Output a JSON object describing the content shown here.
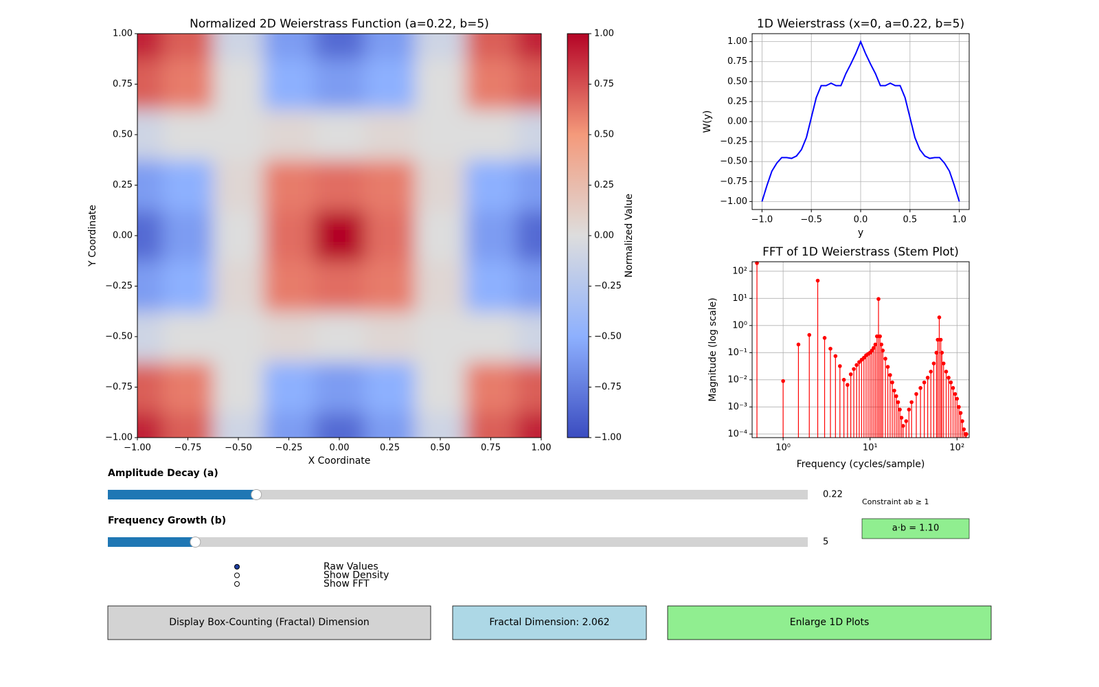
{
  "chart_data": [
    {
      "type": "heatmap",
      "title": "Normalized 2D Weierstrass Function (a=0.22, b=5)",
      "xlabel": "X Coordinate",
      "ylabel": "Y Coordinate",
      "x": [
        -1,
        -0.75,
        -0.5,
        -0.25,
        0,
        0.25,
        0.5,
        0.75,
        1
      ],
      "y": [
        -1,
        -0.75,
        -0.5,
        -0.25,
        0,
        0.25,
        0.5,
        0.75,
        1
      ],
      "values": [
        [
          0.9,
          0.7,
          -0.1,
          -0.6,
          -0.85,
          -0.6,
          -0.1,
          0.7,
          0.9
        ],
        [
          0.7,
          0.6,
          0.0,
          -0.5,
          -0.6,
          -0.5,
          0.0,
          0.6,
          0.7
        ],
        [
          -0.1,
          0.0,
          0.0,
          0.05,
          0.0,
          0.05,
          0.0,
          0.0,
          -0.1
        ],
        [
          -0.6,
          -0.5,
          0.05,
          0.6,
          0.65,
          0.6,
          0.05,
          -0.5,
          -0.6
        ],
        [
          -0.85,
          -0.6,
          0.0,
          0.65,
          1,
          0.65,
          0.0,
          -0.6,
          -0.85
        ],
        [
          -0.6,
          -0.5,
          0.05,
          0.6,
          0.65,
          0.6,
          0.05,
          -0.5,
          -0.6
        ],
        [
          -0.1,
          0.0,
          0.0,
          0.05,
          0.0,
          0.05,
          0.0,
          0.0,
          -0.1
        ],
        [
          0.7,
          0.6,
          0.0,
          -0.5,
          -0.6,
          -0.5,
          0.0,
          0.6,
          0.7
        ],
        [
          0.9,
          0.7,
          -0.1,
          -0.6,
          -0.85,
          -0.6,
          -0.1,
          0.7,
          0.9
        ]
      ],
      "xlim": [
        -1,
        1
      ],
      "ylim": [
        -1,
        1
      ],
      "xticks": [
        {
          "value": -1,
          "label": "−1.00"
        },
        {
          "value": -0.75,
          "label": "−0.75"
        },
        {
          "value": -0.5,
          "label": "−0.50"
        },
        {
          "value": -0.25,
          "label": "−0.25"
        },
        {
          "value": 0,
          "label": "0.00"
        },
        0.25,
        {
          "value": 0.5,
          "label": "0.50"
        },
        0.75,
        {
          "value": 1,
          "label": "1.00"
        }
      ],
      "yticks": [
        {
          "value": -1,
          "label": "−1.00"
        },
        {
          "value": -0.75,
          "label": "−0.75"
        },
        {
          "value": -0.5,
          "label": "−0.50"
        },
        {
          "value": -0.25,
          "label": "−0.25"
        },
        {
          "value": 0,
          "label": "0.00"
        },
        0.25,
        {
          "value": 0.5,
          "label": "0.50"
        },
        0.75,
        {
          "value": 1,
          "label": "1.00"
        }
      ],
      "colormap": "coolwarm",
      "colorbar": {
        "label": "Normalized Value",
        "clim": [
          -1,
          1
        ],
        "ticks": [
          {
            "value": -1,
            "label": "−1.00"
          },
          {
            "value": -0.75,
            "label": "−0.75"
          },
          {
            "value": -0.5,
            "label": "−0.50"
          },
          {
            "value": -0.25,
            "label": "−0.25"
          },
          {
            "value": 0,
            "label": "0.00"
          },
          0.25,
          {
            "value": 0.5,
            "label": "0.50"
          },
          0.75,
          {
            "value": 1,
            "label": "1.00"
          }
        ]
      }
    },
    {
      "type": "line",
      "title": "1D Weierstrass (x=0, a=0.22, b=5)",
      "xlabel": "y",
      "ylabel": "W(y)",
      "color": "#0000ff",
      "grid": true,
      "x": [
        -1,
        -0.95,
        -0.9,
        -0.85,
        -0.8,
        -0.75,
        -0.7,
        -0.65,
        -0.6,
        -0.55,
        -0.5,
        -0.45,
        -0.4,
        -0.35,
        -0.3,
        -0.25,
        -0.2,
        -0.15,
        -0.1,
        -0.05,
        0,
        0.05,
        0.1,
        0.15,
        0.2,
        0.25,
        0.3,
        0.35,
        0.4,
        0.45,
        0.5,
        0.55,
        0.6,
        0.65,
        0.7,
        0.75,
        0.8,
        0.85,
        0.9,
        0.95,
        1
      ],
      "values": [
        -1.0,
        -0.8,
        -0.62,
        -0.52,
        -0.45,
        -0.45,
        -0.46,
        -0.43,
        -0.35,
        -0.2,
        0.05,
        0.3,
        0.45,
        0.45,
        0.48,
        0.45,
        0.45,
        0.6,
        0.72,
        0.85,
        1.0,
        0.85,
        0.72,
        0.6,
        0.45,
        0.45,
        0.48,
        0.45,
        0.45,
        0.3,
        0.05,
        -0.2,
        -0.35,
        -0.43,
        -0.46,
        -0.45,
        -0.45,
        -0.52,
        -0.62,
        -0.8,
        -1.0
      ],
      "xlim": [
        -1.1,
        1.1
      ],
      "ylim": [
        -1.1,
        1.1
      ],
      "xticks": [
        {
          "value": -1,
          "label": "−1.0"
        },
        {
          "value": -0.5,
          "label": "−0.5"
        },
        {
          "value": 0,
          "label": "0.0"
        },
        0.5,
        {
          "value": 1,
          "label": "1.0"
        }
      ],
      "yticks": [
        {
          "value": -1,
          "label": "−1.00"
        },
        {
          "value": -0.75,
          "label": "−0.75"
        },
        {
          "value": -0.5,
          "label": "−0.50"
        },
        {
          "value": -0.25,
          "label": "−0.25"
        },
        {
          "value": 0,
          "label": "0.00"
        },
        0.25,
        {
          "value": 0.5,
          "label": "0.50"
        },
        0.75,
        {
          "value": 1,
          "label": "1.00"
        }
      ]
    },
    {
      "type": "stem",
      "title": "FFT of 1D Weierstrass (Stem Plot)",
      "xlabel": "Frequency (cycles/sample)",
      "ylabel": "Magnitude (log scale)",
      "color": "#ff0000",
      "grid": true,
      "xscale": "log",
      "yscale": "log",
      "xlim": [
        0.44,
        138
      ],
      "ylim": [
        7.4e-05,
        224
      ],
      "x": [
        0.5,
        1,
        1.5,
        2,
        2.5,
        3,
        3.5,
        4,
        4.5,
        5,
        5.5,
        6,
        6.5,
        7,
        7.5,
        8,
        8.5,
        9,
        9.5,
        10,
        10.5,
        11,
        11.5,
        12,
        12.5,
        13,
        13.5,
        14,
        15,
        16,
        17,
        18,
        19,
        20,
        21,
        22,
        23,
        24,
        26,
        28,
        30,
        34,
        38,
        42,
        46,
        50,
        54,
        58,
        60,
        62.5,
        65,
        67,
        70,
        75,
        80,
        85,
        90,
        95,
        100,
        105,
        110,
        115,
        120,
        125,
        128
      ],
      "values": [
        200,
        0.009,
        0.2,
        0.45,
        45,
        0.35,
        0.14,
        0.075,
        0.032,
        0.01,
        0.0065,
        0.016,
        0.025,
        0.035,
        0.045,
        0.055,
        0.065,
        0.08,
        0.09,
        0.1,
        0.12,
        0.15,
        0.2,
        0.4,
        9.5,
        0.4,
        0.2,
        0.12,
        0.06,
        0.03,
        0.015,
        0.008,
        0.004,
        0.0025,
        0.0015,
        0.0008,
        0.0004,
        0.0002,
        0.0003,
        0.0008,
        0.0015,
        0.003,
        0.005,
        0.008,
        0.012,
        0.02,
        0.04,
        0.1,
        0.3,
        2.0,
        0.3,
        0.1,
        0.04,
        0.02,
        0.012,
        0.008,
        0.005,
        0.003,
        0.002,
        0.001,
        0.0006,
        0.0003,
        0.00015,
        0.0001,
        0.0001
      ],
      "xticks": [
        {
          "value": 1,
          "label": "10⁰"
        },
        {
          "value": 10,
          "label": "10¹"
        },
        {
          "value": 100,
          "label": "10²"
        }
      ],
      "yticks": [
        {
          "value": 0.0001,
          "label": "10⁻⁴"
        },
        {
          "value": 0.001,
          "label": "10⁻³"
        },
        {
          "value": 0.01,
          "label": "10⁻²"
        },
        {
          "value": 0.1,
          "label": "10⁻¹"
        },
        {
          "value": 1,
          "label": "10⁰"
        },
        {
          "value": 10,
          "label": "10¹"
        },
        {
          "value": 100,
          "label": "10²"
        }
      ]
    }
  ],
  "controls": {
    "sliders": [
      {
        "label": "Amplitude Decay (a)",
        "value": 0.22,
        "min": 0.01,
        "max": 1.0
      },
      {
        "label": "Frequency Growth (b)",
        "value": 5,
        "min": 1,
        "max": 33
      }
    ],
    "constraint": {
      "label": "Constraint ab ≥ 1",
      "status": "a·b = 1.10"
    },
    "radio": {
      "options": [
        "Raw Values",
        "Show Density",
        "Show FFT"
      ],
      "selected": 0
    },
    "buttons": [
      "Display Box-Counting (Fractal) Dimension",
      "Fractal Dimension: 2.062",
      "Enlarge 1D Plots"
    ]
  }
}
